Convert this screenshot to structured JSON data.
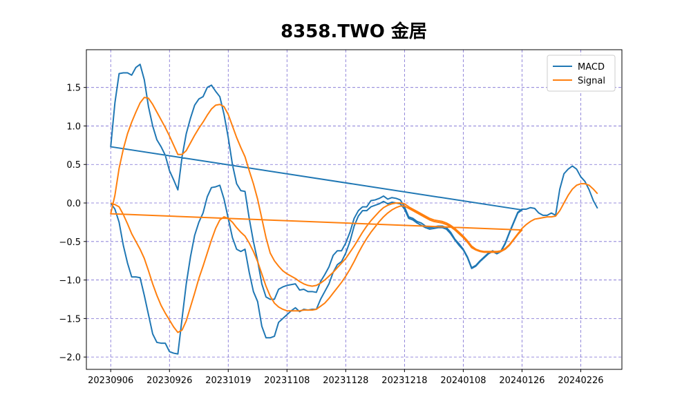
{
  "chart_data": {
    "type": "line",
    "title": "8358.TWO 金居",
    "x": [
      "20230906",
      "20230907",
      "20230908",
      "20230911",
      "20230912",
      "20230913",
      "20230914",
      "20230915",
      "20230918",
      "20230919",
      "20230920",
      "20230921",
      "20230922",
      "20230925",
      "20230926",
      "20230927",
      "20230928",
      "20231002",
      "20231003",
      "20231004",
      "20231005",
      "20231006",
      "20231011",
      "20231012",
      "20231013",
      "20231016",
      "20231017",
      "20231018",
      "20231019",
      "20231020",
      "20231023",
      "20231024",
      "20231025",
      "20231026",
      "20231027",
      "20231030",
      "20231031",
      "20231101",
      "20231102",
      "20231103",
      "20231106",
      "20231107",
      "20231108",
      "20231109",
      "20231110",
      "20231113",
      "20231114",
      "20231115",
      "20231116",
      "20231117",
      "20231120",
      "20231121",
      "20231122",
      "20231123",
      "20231124",
      "20231127",
      "20231128",
      "20231129",
      "20231130",
      "20231201",
      "20231204",
      "20231205",
      "20231206",
      "20231207",
      "20231208",
      "20231211",
      "20231212",
      "20231213",
      "20231214",
      "20231215",
      "20231218",
      "20231219",
      "20231220",
      "20231221",
      "20231222",
      "20231225",
      "20231226",
      "20231227",
      "20231228",
      "20231229",
      "20240102",
      "20240103",
      "20240104",
      "20240105",
      "20240108",
      "20240109",
      "20240110",
      "20240111",
      "20240112",
      "20240115",
      "20240116",
      "20240117",
      "20240118",
      "20240119",
      "20240122",
      "20240123",
      "20240124",
      "20240125",
      "20240126",
      "20230906",
      "20230907",
      "20230908",
      "20230911",
      "20230912",
      "20230913",
      "20230914",
      "20230915",
      "20230918",
      "20230919",
      "20230920",
      "20230921",
      "20230922",
      "20230925",
      "20230926",
      "20230927",
      "20230928",
      "20231002",
      "20231003",
      "20231004",
      "20231005",
      "20231006",
      "20231011",
      "20231012",
      "20231013",
      "20231016",
      "20231017",
      "20231018",
      "20231019",
      "20231020",
      "20231023",
      "20231024",
      "20231025",
      "20231026",
      "20231027",
      "20231030",
      "20231031",
      "20231101",
      "20231102",
      "20231103",
      "20231106",
      "20231107",
      "20231108",
      "20231109",
      "20231110",
      "20231113",
      "20231114",
      "20231115",
      "20231116",
      "20231117",
      "20231120",
      "20231121",
      "20231122",
      "20231123",
      "20231124",
      "20231127",
      "20231128",
      "20231129",
      "20231130",
      "20231201",
      "20231204",
      "20231205",
      "20231206",
      "20231207",
      "20231208",
      "20231211",
      "20231212",
      "20231213",
      "20231214",
      "20231215",
      "20231218",
      "20231219",
      "20231220",
      "20231221",
      "20231222",
      "20231225",
      "20231226",
      "20231227",
      "20231228",
      "20231229",
      "20240102",
      "20240103",
      "20240104",
      "20240105",
      "20240108",
      "20240109",
      "20240110",
      "20240111",
      "20240112",
      "20240115",
      "20240116",
      "20240117",
      "20240118",
      "20240119",
      "20240122",
      "20240123",
      "20240124",
      "20240125",
      "20240126",
      "20240129",
      "20240130",
      "20240131",
      "20240201",
      "20240202",
      "20240205",
      "20240215",
      "20240216",
      "20240219",
      "20240220",
      "20240221",
      "20240222",
      "20240223",
      "20240226",
      "20240227",
      "20240229",
      "20240301",
      "20240304"
    ],
    "series": [
      {
        "name": "MACD",
        "color": "#1f77b4",
        "values": [
          0.0,
          -0.08,
          -0.25,
          -0.55,
          -0.78,
          -0.96,
          -0.96,
          -0.97,
          -1.2,
          -1.45,
          -1.7,
          -1.81,
          -1.82,
          -1.82,
          -1.93,
          -1.95,
          -1.96,
          -1.5,
          -1.05,
          -0.7,
          -0.42,
          -0.25,
          -0.13,
          0.08,
          0.2,
          0.21,
          0.23,
          0.05,
          -0.2,
          -0.45,
          -0.6,
          -0.63,
          -0.6,
          -0.9,
          -1.15,
          -1.28,
          -1.6,
          -1.75,
          -1.75,
          -1.73,
          -1.55,
          -1.5,
          -1.45,
          -1.4,
          -1.36,
          -1.41,
          -1.38,
          -1.39,
          -1.38,
          -1.38,
          -1.25,
          -1.15,
          -1.05,
          -0.9,
          -0.8,
          -0.76,
          -0.65,
          -0.5,
          -0.3,
          -0.17,
          -0.1,
          -0.1,
          -0.05,
          -0.03,
          -0.01,
          0.02,
          -0.01,
          0.01,
          0.0,
          -0.01,
          -0.08,
          -0.2,
          -0.22,
          -0.26,
          -0.29,
          -0.32,
          -0.34,
          -0.33,
          -0.32,
          -0.32,
          -0.34,
          -0.4,
          -0.48,
          -0.55,
          -0.61,
          -0.71,
          -0.85,
          -0.82,
          -0.76,
          -0.71,
          -0.66,
          -0.63,
          -0.66,
          -0.63,
          -0.53,
          -0.39,
          -0.26,
          -0.13,
          -0.09,
          0.73,
          1.3,
          1.68,
          1.69,
          1.69,
          1.66,
          1.76,
          1.8,
          1.6,
          1.25,
          1.0,
          0.82,
          0.73,
          0.62,
          0.42,
          0.3,
          0.17,
          0.6,
          0.9,
          1.1,
          1.27,
          1.35,
          1.38,
          1.5,
          1.53,
          1.45,
          1.38,
          1.15,
          0.85,
          0.5,
          0.25,
          0.16,
          0.15,
          -0.2,
          -0.5,
          -0.75,
          -1.05,
          -1.22,
          -1.25,
          -1.25,
          -1.12,
          -1.09,
          -1.07,
          -1.06,
          -1.05,
          -1.13,
          -1.12,
          -1.15,
          -1.15,
          -1.16,
          -1.02,
          -0.93,
          -0.83,
          -0.68,
          -0.62,
          -0.62,
          -0.52,
          -0.38,
          -0.2,
          -0.1,
          -0.05,
          -0.05,
          0.03,
          0.04,
          0.06,
          0.09,
          0.05,
          0.07,
          0.06,
          0.04,
          -0.05,
          -0.18,
          -0.2,
          -0.24,
          -0.26,
          -0.3,
          -0.32,
          -0.31,
          -0.3,
          -0.3,
          -0.32,
          -0.38,
          -0.47,
          -0.53,
          -0.6,
          -0.7,
          -0.84,
          -0.81,
          -0.75,
          -0.7,
          -0.65,
          -0.62,
          -0.65,
          -0.62,
          -0.52,
          -0.38,
          -0.25,
          -0.12,
          -0.08,
          -0.08,
          -0.06,
          -0.07,
          -0.13,
          -0.16,
          -0.16,
          -0.13,
          -0.16,
          0.18,
          0.38,
          0.44,
          0.48,
          0.44,
          0.34,
          0.28,
          0.17,
          0.03,
          -0.07
        ]
      },
      {
        "name": "Signal",
        "color": "#ff7f0e",
        "values": [
          0.0,
          -0.02,
          -0.05,
          -0.15,
          -0.27,
          -0.4,
          -0.5,
          -0.6,
          -0.72,
          -0.88,
          -1.05,
          -1.2,
          -1.33,
          -1.43,
          -1.52,
          -1.61,
          -1.68,
          -1.65,
          -1.53,
          -1.35,
          -1.17,
          -0.98,
          -0.82,
          -0.65,
          -0.48,
          -0.33,
          -0.22,
          -0.18,
          -0.2,
          -0.25,
          -0.32,
          -0.38,
          -0.43,
          -0.52,
          -0.63,
          -0.76,
          -0.92,
          -1.08,
          -1.21,
          -1.3,
          -1.35,
          -1.38,
          -1.4,
          -1.4,
          -1.4,
          -1.4,
          -1.39,
          -1.39,
          -1.39,
          -1.38,
          -1.34,
          -1.3,
          -1.24,
          -1.17,
          -1.1,
          -1.03,
          -0.95,
          -0.86,
          -0.76,
          -0.65,
          -0.55,
          -0.46,
          -0.38,
          -0.31,
          -0.24,
          -0.18,
          -0.13,
          -0.09,
          -0.06,
          -0.04,
          -0.04,
          -0.07,
          -0.1,
          -0.13,
          -0.16,
          -0.19,
          -0.22,
          -0.24,
          -0.25,
          -0.26,
          -0.28,
          -0.31,
          -0.35,
          -0.4,
          -0.45,
          -0.51,
          -0.58,
          -0.61,
          -0.63,
          -0.64,
          -0.64,
          -0.64,
          -0.64,
          -0.63,
          -0.6,
          -0.55,
          -0.48,
          -0.41,
          -0.35,
          -0.14,
          0.1,
          0.45,
          0.7,
          0.9,
          1.05,
          1.18,
          1.3,
          1.37,
          1.36,
          1.28,
          1.18,
          1.08,
          0.98,
          0.87,
          0.75,
          0.63,
          0.63,
          0.68,
          0.78,
          0.88,
          0.97,
          1.05,
          1.14,
          1.22,
          1.27,
          1.28,
          1.25,
          1.15,
          1.0,
          0.85,
          0.72,
          0.6,
          0.42,
          0.25,
          0.05,
          -0.2,
          -0.45,
          -0.65,
          -0.75,
          -0.82,
          -0.88,
          -0.92,
          -0.95,
          -0.98,
          -1.02,
          -1.05,
          -1.07,
          -1.08,
          -1.07,
          -1.04,
          -1.0,
          -0.95,
          -0.9,
          -0.84,
          -0.78,
          -0.72,
          -0.64,
          -0.56,
          -0.47,
          -0.38,
          -0.3,
          -0.23,
          -0.17,
          -0.11,
          -0.06,
          -0.03,
          -0.01,
          0.0,
          0.0,
          -0.01,
          -0.05,
          -0.08,
          -0.11,
          -0.14,
          -0.17,
          -0.2,
          -0.22,
          -0.23,
          -0.24,
          -0.26,
          -0.29,
          -0.33,
          -0.38,
          -0.43,
          -0.49,
          -0.56,
          -0.6,
          -0.62,
          -0.63,
          -0.63,
          -0.63,
          -0.63,
          -0.62,
          -0.59,
          -0.54,
          -0.47,
          -0.4,
          -0.33,
          -0.28,
          -0.24,
          -0.21,
          -0.2,
          -0.19,
          -0.18,
          -0.18,
          -0.17,
          -0.1,
          0.0,
          0.1,
          0.18,
          0.23,
          0.25,
          0.25,
          0.23,
          0.18,
          0.12
        ]
      }
    ],
    "xticks": [
      "20230906",
      "20230926",
      "20231019",
      "20231108",
      "20231128",
      "20231218",
      "20240108",
      "20240126",
      "20240226"
    ],
    "ylim": [
      -2.16,
      1.99
    ],
    "yticks": [
      {
        "value": -2,
        "label": "−2.0"
      },
      {
        "value": -1.5,
        "label": "−1.5"
      },
      {
        "value": -1,
        "label": "−1.0"
      },
      {
        "value": -0.5,
        "label": "−0.5"
      },
      {
        "value": 0,
        "label": "0.0"
      },
      0.5,
      {
        "value": 1,
        "label": "1.0"
      },
      1.5
    ],
    "grid": true,
    "legend": "upper right"
  }
}
